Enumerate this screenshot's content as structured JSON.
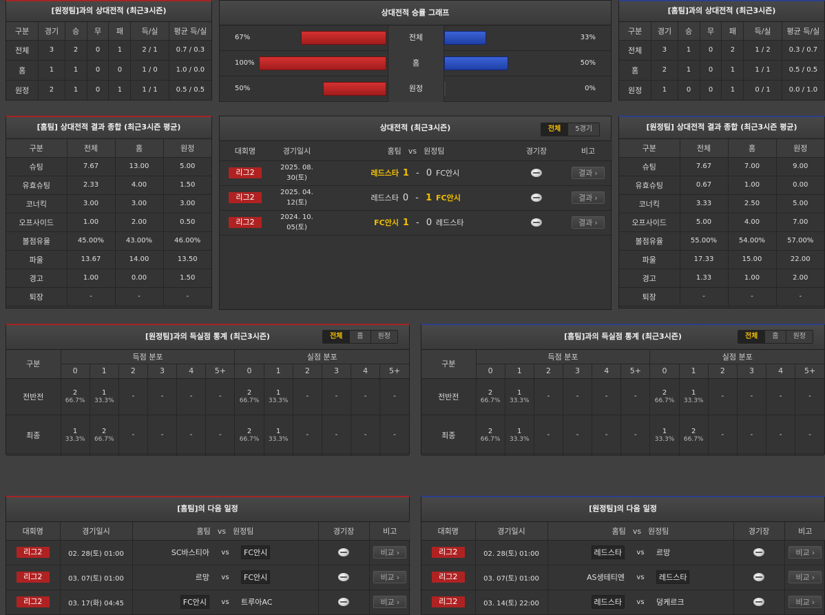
{
  "h2h_away": {
    "title": "[원정팀]과의 상대전적 (최근3시즌)",
    "headers": [
      "구분",
      "경기",
      "승",
      "무",
      "패",
      "득/실",
      "평균 득/실"
    ],
    "rows": [
      [
        "전체",
        "3",
        "2",
        "0",
        "1",
        "2 / 1",
        "0.7 / 0.3"
      ],
      [
        "홈",
        "1",
        "1",
        "0",
        "0",
        "1 / 0",
        "1.0 / 0.0"
      ],
      [
        "원정",
        "2",
        "1",
        "0",
        "1",
        "1 / 1",
        "0.5 / 0.5"
      ]
    ]
  },
  "h2h_graph": {
    "title": "상대전적 승률 그래프",
    "rows": [
      {
        "label": "전체",
        "left_pct": "67%",
        "right_pct": "33%",
        "left": 67,
        "right": 33
      },
      {
        "label": "홈",
        "left_pct": "100%",
        "right_pct": "50%",
        "left": 100,
        "right": 50
      },
      {
        "label": "원정",
        "left_pct": "50%",
        "right_pct": "0%",
        "left": 50,
        "right": 0
      }
    ],
    "colors": {
      "home": "#c42424",
      "away": "#2c50c4"
    }
  },
  "h2h_home": {
    "title": "[홈팀]과의 상대전적 (최근3시즌)",
    "headers": [
      "구분",
      "경기",
      "승",
      "무",
      "패",
      "득/실",
      "평균 득/실"
    ],
    "rows": [
      [
        "전체",
        "3",
        "1",
        "0",
        "2",
        "1 / 2",
        "0.3 / 0.7"
      ],
      [
        "홈",
        "2",
        "1",
        "0",
        "1",
        "1 / 1",
        "0.5 / 0.5"
      ],
      [
        "원정",
        "1",
        "0",
        "0",
        "1",
        "0 / 1",
        "0.0 / 1.0"
      ]
    ]
  },
  "stats_home": {
    "title": "[홈팀] 상대전적 결과 종합 (최근3시즌 평균)",
    "headers": [
      "구분",
      "전체",
      "홈",
      "원정"
    ],
    "rows": [
      [
        "슈팅",
        "7.67",
        "13.00",
        "5.00"
      ],
      [
        "유효슈팅",
        "2.33",
        "4.00",
        "1.50"
      ],
      [
        "코너킥",
        "3.00",
        "3.00",
        "3.00"
      ],
      [
        "오프사이드",
        "1.00",
        "2.00",
        "0.50"
      ],
      [
        "볼점유율",
        "45.00%",
        "43.00%",
        "46.00%"
      ],
      [
        "파울",
        "13.67",
        "14.00",
        "13.50"
      ],
      [
        "경고",
        "1.00",
        "0.00",
        "1.50"
      ],
      [
        "퇴장",
        "-",
        "-",
        "-"
      ]
    ]
  },
  "recent": {
    "title": "상대전적 (최근3시즌)",
    "tabs": [
      "전체",
      "5경기"
    ],
    "headers": {
      "league": "대회명",
      "date": "경기일시",
      "home": "홈팀",
      "vs": "vs",
      "away": "원정팀",
      "venue": "경기장",
      "note": "비고"
    },
    "rows": [
      {
        "league": "리그2",
        "date": "2025. 08. 30(토)",
        "home": "레드스타",
        "hs": "1",
        "as": "0",
        "away": "FC안시",
        "win": "home",
        "btn": "결과"
      },
      {
        "league": "리그2",
        "date": "2025. 04. 12(토)",
        "home": "레드스타",
        "hs": "0",
        "as": "1",
        "away": "FC안시",
        "win": "away",
        "btn": "결과"
      },
      {
        "league": "리그2",
        "date": "2024. 10. 05(토)",
        "home": "FC안시",
        "hs": "1",
        "as": "0",
        "away": "레드스타",
        "win": "home",
        "btn": "결과"
      }
    ]
  },
  "stats_away": {
    "title": "[원정팀] 상대전적 결과 종합 (최근3시즌 평균)",
    "headers": [
      "구분",
      "전체",
      "홈",
      "원정"
    ],
    "rows": [
      [
        "슈팅",
        "7.67",
        "7.00",
        "9.00"
      ],
      [
        "유효슈팅",
        "0.67",
        "1.00",
        "0.00"
      ],
      [
        "코너킥",
        "3.33",
        "2.50",
        "5.00"
      ],
      [
        "오프사이드",
        "5.00",
        "4.00",
        "7.00"
      ],
      [
        "볼점유율",
        "55.00%",
        "54.00%",
        "57.00%"
      ],
      [
        "파울",
        "17.33",
        "15.00",
        "22.00"
      ],
      [
        "경고",
        "1.33",
        "1.00",
        "2.00"
      ],
      [
        "퇴장",
        "-",
        "-",
        "-"
      ]
    ]
  },
  "goals_away": {
    "title": "[원정팀]과의 득실점 통계 (최근3시즌)",
    "tabs": [
      "전체",
      "홈",
      "원정"
    ],
    "label": "구분",
    "group_scored": "득점 분포",
    "group_conceded": "실점 분포",
    "cols": [
      "0",
      "1",
      "2",
      "3",
      "4",
      "5+"
    ],
    "rows": [
      {
        "label": "전반전",
        "cells": [
          [
            "2",
            "66.7%"
          ],
          [
            "1",
            "33.3%"
          ],
          [
            "-",
            ""
          ],
          [
            "-",
            ""
          ],
          [
            "-",
            ""
          ],
          [
            "-",
            ""
          ],
          [
            "2",
            "66.7%"
          ],
          [
            "1",
            "33.3%"
          ],
          [
            "-",
            ""
          ],
          [
            "-",
            ""
          ],
          [
            "-",
            ""
          ],
          [
            "-",
            ""
          ]
        ]
      },
      {
        "label": "최종",
        "cells": [
          [
            "1",
            "33.3%"
          ],
          [
            "2",
            "66.7%"
          ],
          [
            "-",
            ""
          ],
          [
            "-",
            ""
          ],
          [
            "-",
            ""
          ],
          [
            "-",
            ""
          ],
          [
            "2",
            "66.7%"
          ],
          [
            "1",
            "33.3%"
          ],
          [
            "-",
            ""
          ],
          [
            "-",
            ""
          ],
          [
            "-",
            ""
          ],
          [
            "-",
            ""
          ]
        ]
      }
    ]
  },
  "goals_home": {
    "title": "[홈팀]과의 득실점 통계 (최근3시즌)",
    "tabs": [
      "전체",
      "홈",
      "원정"
    ],
    "label": "구분",
    "group_scored": "득점 분포",
    "group_conceded": "실점 분포",
    "cols": [
      "0",
      "1",
      "2",
      "3",
      "4",
      "5+"
    ],
    "rows": [
      {
        "label": "전반전",
        "cells": [
          [
            "2",
            "66.7%"
          ],
          [
            "1",
            "33.3%"
          ],
          [
            "-",
            ""
          ],
          [
            "-",
            ""
          ],
          [
            "-",
            ""
          ],
          [
            "-",
            ""
          ],
          [
            "2",
            "66.7%"
          ],
          [
            "1",
            "33.3%"
          ],
          [
            "-",
            ""
          ],
          [
            "-",
            ""
          ],
          [
            "-",
            ""
          ],
          [
            "-",
            ""
          ]
        ]
      },
      {
        "label": "최종",
        "cells": [
          [
            "2",
            "66.7%"
          ],
          [
            "1",
            "33.3%"
          ],
          [
            "-",
            ""
          ],
          [
            "-",
            ""
          ],
          [
            "-",
            ""
          ],
          [
            "-",
            ""
          ],
          [
            "1",
            "33.3%"
          ],
          [
            "2",
            "66.7%"
          ],
          [
            "-",
            ""
          ],
          [
            "-",
            ""
          ],
          [
            "-",
            ""
          ],
          [
            "-",
            ""
          ]
        ]
      }
    ]
  },
  "next_home": {
    "title": "[홈팀]의 다음 일정",
    "headers": {
      "league": "대회명",
      "date": "경기일시",
      "home": "홈팀",
      "vs": "vs",
      "away": "원정팀",
      "venue": "경기장",
      "note": "비고"
    },
    "rows": [
      {
        "league": "리그2",
        "date": "02. 28(토) 01:00",
        "home": "SC바스티아",
        "away": "FC안시",
        "boxed": "away",
        "btn": "비교"
      },
      {
        "league": "리그2",
        "date": "03. 07(토) 01:00",
        "home": "르망",
        "away": "FC안시",
        "boxed": "away",
        "btn": "비교"
      },
      {
        "league": "리그2",
        "date": "03. 17(화) 04:45",
        "home": "FC안시",
        "away": "트루아AC",
        "boxed": "home",
        "btn": "비교"
      }
    ]
  },
  "next_away": {
    "title": "[원정팀]의 다음 일정",
    "headers": {
      "league": "대회명",
      "date": "경기일시",
      "home": "홈팀",
      "vs": "vs",
      "away": "원정팀",
      "venue": "경기장",
      "note": "비고"
    },
    "rows": [
      {
        "league": "리그2",
        "date": "02. 28(토) 01:00",
        "home": "레드스타",
        "away": "르망",
        "boxed": "home",
        "btn": "비교"
      },
      {
        "league": "리그2",
        "date": "03. 07(토) 01:00",
        "home": "AS생테티엔",
        "away": "레드스타",
        "boxed": "away",
        "btn": "비교"
      },
      {
        "league": "리그2",
        "date": "03. 14(토) 22:00",
        "home": "레드스타",
        "away": "덩케르크",
        "boxed": "home",
        "btn": "비교"
      }
    ]
  }
}
